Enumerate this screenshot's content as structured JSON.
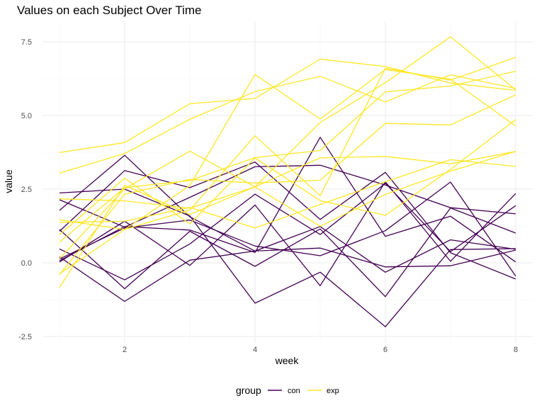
{
  "chart_data": {
    "type": "line",
    "title": "Values on each Subject Over Time",
    "xlabel": "week",
    "ylabel": "value",
    "x": [
      1,
      2,
      3,
      4,
      5,
      6,
      7,
      8
    ],
    "xlim": [
      1,
      8
    ],
    "ylim": [
      -2.5,
      8.25
    ],
    "xticks": [
      2,
      4,
      6,
      8
    ],
    "yticks": [
      -2.5,
      0.0,
      2.5,
      5.0,
      7.5
    ],
    "ytick_labels": [
      "-2.5",
      "0.0",
      "2.5",
      "5.0",
      "7.5"
    ],
    "grid": true,
    "legend": {
      "title": "group",
      "position": "bottom",
      "entries": [
        {
          "label": "con",
          "color": "#440154"
        },
        {
          "label": "exp",
          "color": "#fde725"
        }
      ]
    },
    "series": [
      {
        "group": "con",
        "values": [
          0.2,
          -1.31,
          0.09,
          0.4,
          0.5,
          -0.14,
          -0.1,
          0.43
        ]
      },
      {
        "group": "con",
        "values": [
          1.13,
          -0.88,
          1.07,
          -0.12,
          1.15,
          -1.15,
          1.86,
          1.01
        ]
      },
      {
        "group": "con",
        "values": [
          1.78,
          3.65,
          1.56,
          0.4,
          1.23,
          -0.32,
          0.78,
          0.46
        ]
      },
      {
        "group": "con",
        "values": [
          0.13,
          1.18,
          1.45,
          0.57,
          0.24,
          1.09,
          2.74,
          -0.45
        ]
      },
      {
        "group": "con",
        "values": [
          0.07,
          1.23,
          1.11,
          0.35,
          4.26,
          0.9,
          1.58,
          0.03
        ]
      },
      {
        "group": "con",
        "values": [
          2.37,
          2.5,
          1.59,
          -1.37,
          -0.32,
          -2.17,
          0.45,
          0.48
        ]
      },
      {
        "group": "con",
        "values": [
          0.03,
          1.41,
          -0.09,
          1.96,
          -0.78,
          2.75,
          0.05,
          2.35
        ]
      },
      {
        "group": "con",
        "values": [
          2.14,
          1.21,
          2.22,
          3.26,
          3.31,
          2.64,
          1.87,
          1.66
        ]
      },
      {
        "group": "con",
        "values": [
          1.07,
          3.13,
          2.55,
          3.42,
          1.47,
          3.07,
          0.34,
          -0.55
        ]
      },
      {
        "group": "con",
        "values": [
          0.47,
          -0.58,
          0.64,
          2.33,
          0.96,
          2.7,
          0.38,
          1.94
        ]
      },
      {
        "group": "exp",
        "values": [
          3.74,
          4.08,
          5.4,
          5.58,
          6.91,
          6.66,
          6.1,
          5.85
        ]
      },
      {
        "group": "exp",
        "values": [
          3.04,
          3.71,
          4.87,
          5.81,
          6.33,
          5.46,
          6.38,
          5.92
        ]
      },
      {
        "group": "exp",
        "values": [
          -0.84,
          2.63,
          1.64,
          2.58,
          1.24,
          2.32,
          3.11,
          3.78
        ]
      },
      {
        "group": "exp",
        "values": [
          -0.4,
          2.33,
          2.83,
          2.71,
          2.8,
          4.73,
          4.68,
          5.7
        ]
      },
      {
        "group": "exp",
        "values": [
          1.37,
          1.41,
          1.88,
          1.18,
          1.98,
          2.75,
          3.5,
          3.27
        ]
      },
      {
        "group": "exp",
        "values": [
          0.7,
          2.55,
          2.79,
          3.57,
          3.81,
          5.8,
          6.0,
          6.5
        ]
      },
      {
        "group": "exp",
        "values": [
          2.17,
          2.1,
          1.85,
          2.58,
          3.56,
          3.61,
          3.36,
          3.78
        ]
      },
      {
        "group": "exp",
        "values": [
          0.14,
          2.51,
          3.79,
          2.58,
          4.76,
          6.11,
          7.67,
          5.87
        ]
      },
      {
        "group": "exp",
        "values": [
          1.46,
          1.13,
          2.62,
          6.39,
          4.88,
          6.56,
          6.23,
          4.64
        ]
      },
      {
        "group": "exp",
        "values": [
          -0.37,
          1.13,
          1.79,
          4.31,
          2.28,
          6.6,
          6.2,
          6.97
        ]
      },
      {
        "group": "exp",
        "values": [
          0.95,
          2.87,
          1.32,
          3.56,
          2.11,
          1.61,
          3.17,
          4.86
        ]
      }
    ]
  }
}
